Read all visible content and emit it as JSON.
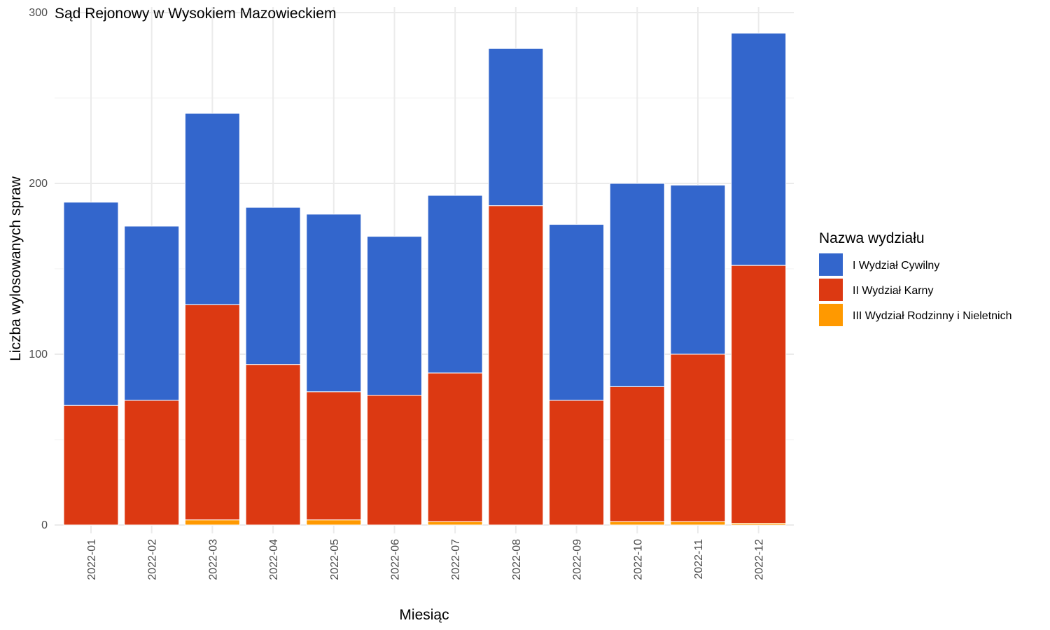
{
  "chart_data": {
    "type": "bar",
    "stacked": true,
    "title": "Sąd Rejonowy w Wysokiem Mazowieckiem",
    "xlabel": "Miesiąc",
    "ylabel": "Liczba wylosowanych spraw",
    "ylim": [
      0,
      300
    ],
    "yticks": [
      0,
      100,
      200,
      300
    ],
    "grid": true,
    "legend": {
      "title": "Nazwa wydziału",
      "position": "right"
    },
    "categories": [
      "2022-01",
      "2022-02",
      "2022-03",
      "2022-04",
      "2022-05",
      "2022-06",
      "2022-07",
      "2022-08",
      "2022-09",
      "2022-10",
      "2022-11",
      "2022-12"
    ],
    "series": [
      {
        "name": "I Wydział Cywilny",
        "color": "#3366CC",
        "values": [
          119,
          102,
          112,
          92,
          104,
          93,
          104,
          92,
          103,
          119,
          99,
          136
        ]
      },
      {
        "name": "II Wydział Karny",
        "color": "#DC3912",
        "values": [
          70,
          73,
          126,
          94,
          75,
          76,
          87,
          187,
          73,
          79,
          98,
          151
        ]
      },
      {
        "name": "III Wydział Rodzinny i Nieletnich",
        "color": "#FF9900",
        "values": [
          0,
          0,
          3,
          0,
          3,
          0,
          2,
          0,
          0,
          2,
          2,
          1
        ]
      }
    ]
  }
}
